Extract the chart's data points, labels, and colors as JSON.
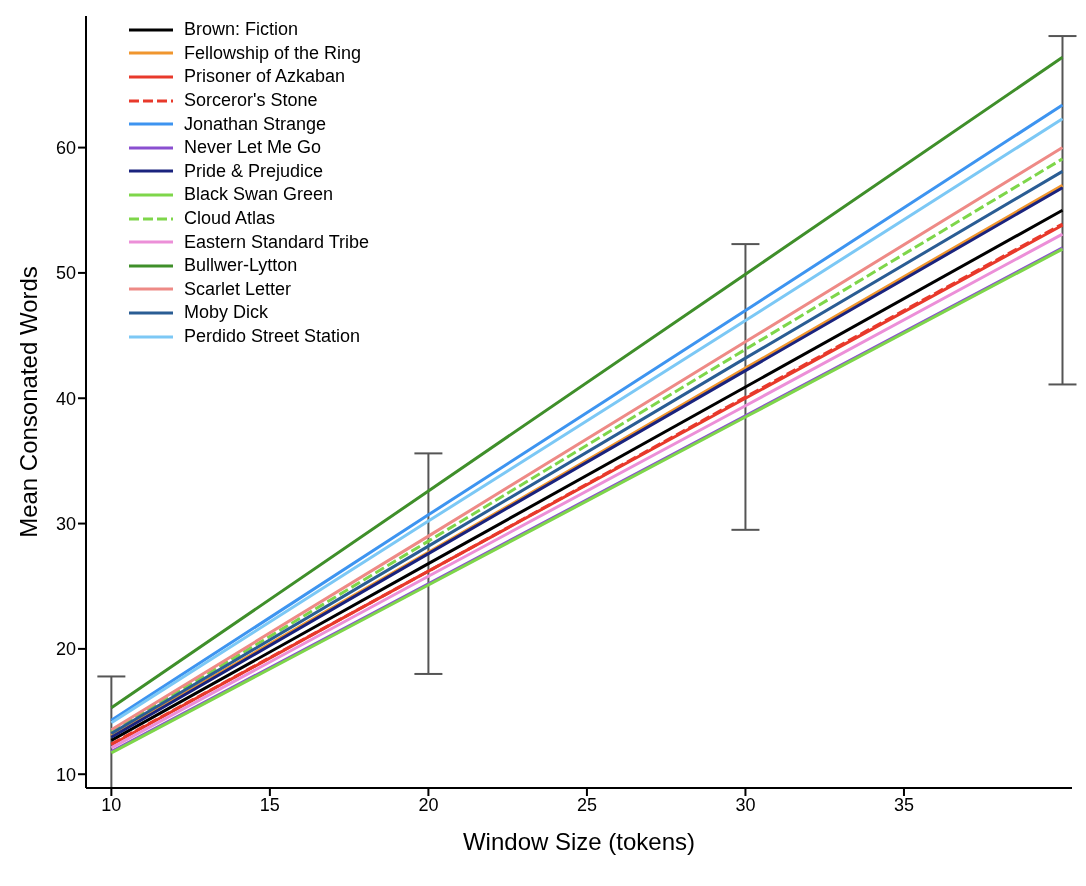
{
  "chart_data": {
    "type": "line",
    "xlabel": "Window Size (tokens)",
    "ylabel": "Mean Consonated Words",
    "x": [
      10,
      20,
      30,
      40
    ],
    "xlim": [
      9.2,
      40.3
    ],
    "xticks": [
      10,
      15,
      20,
      25,
      30,
      35
    ],
    "ylim": [
      8.9,
      70.5
    ],
    "yticks": [
      10,
      20,
      30,
      40,
      50,
      60
    ],
    "grid": false,
    "legend": "top left",
    "marker": "none",
    "line_style": "solid",
    "series": [
      {
        "name": "Brown: Fiction",
        "color": "#000000",
        "values": [
          12.7,
          26.8,
          40.9,
          55.0
        ],
        "errors": [
          [
            8.9,
            17.8
          ],
          8.8,
          11.4,
          13.9
        ]
      },
      {
        "name": "Fellowship of the Ring",
        "color": "#f0962e",
        "values": [
          13.1,
          27.7,
          42.4,
          57.0
        ]
      },
      {
        "name": "Prisoner of Azkaban",
        "color": "#e8392b",
        "values": [
          12.35,
          26.2,
          40.0,
          53.8
        ]
      },
      {
        "name": "Sorceror's Stone",
        "color": "#e8392b",
        "line_style": "dashed",
        "values": [
          12.4,
          26.2,
          40.1,
          53.9
        ]
      },
      {
        "name": "Jonathan Strange",
        "color": "#3d94f0",
        "values": [
          14.3,
          30.7,
          47.0,
          63.4
        ]
      },
      {
        "name": "Never Let Me Go",
        "color": "#8a4fd0",
        "values": [
          11.8,
          25.2,
          38.6,
          52.0
        ]
      },
      {
        "name": "Pride & Prejudice",
        "color": "#1a237e",
        "values": [
          12.95,
          27.6,
          42.2,
          56.8
        ]
      },
      {
        "name": "Black Swan Green",
        "color": "#7ed64a",
        "values": [
          11.7,
          25.1,
          38.5,
          51.9
        ]
      },
      {
        "name": "Cloud Atlas",
        "color": "#7ed64a",
        "line_style": "dashed",
        "values": [
          13.4,
          28.6,
          43.9,
          59.1
        ]
      },
      {
        "name": "Eastern Standard Tribe",
        "color": "#ec8fd8",
        "values": [
          12.1,
          25.8,
          39.4,
          53.1
        ]
      },
      {
        "name": "Bullwer-Lytton",
        "color": "#3f8f2a",
        "values": [
          15.3,
          32.6,
          49.9,
          67.2
        ]
      },
      {
        "name": "Scarlet Letter",
        "color": "#ee8a86",
        "values": [
          13.55,
          29.0,
          44.5,
          60.0
        ]
      },
      {
        "name": "Moby Dick",
        "color": "#2a5d94",
        "values": [
          13.25,
          28.2,
          43.2,
          58.1
        ]
      },
      {
        "name": "Perdido Street Station",
        "color": "#7cc8f5",
        "values": [
          14.1,
          30.2,
          46.2,
          62.3
        ]
      }
    ]
  }
}
